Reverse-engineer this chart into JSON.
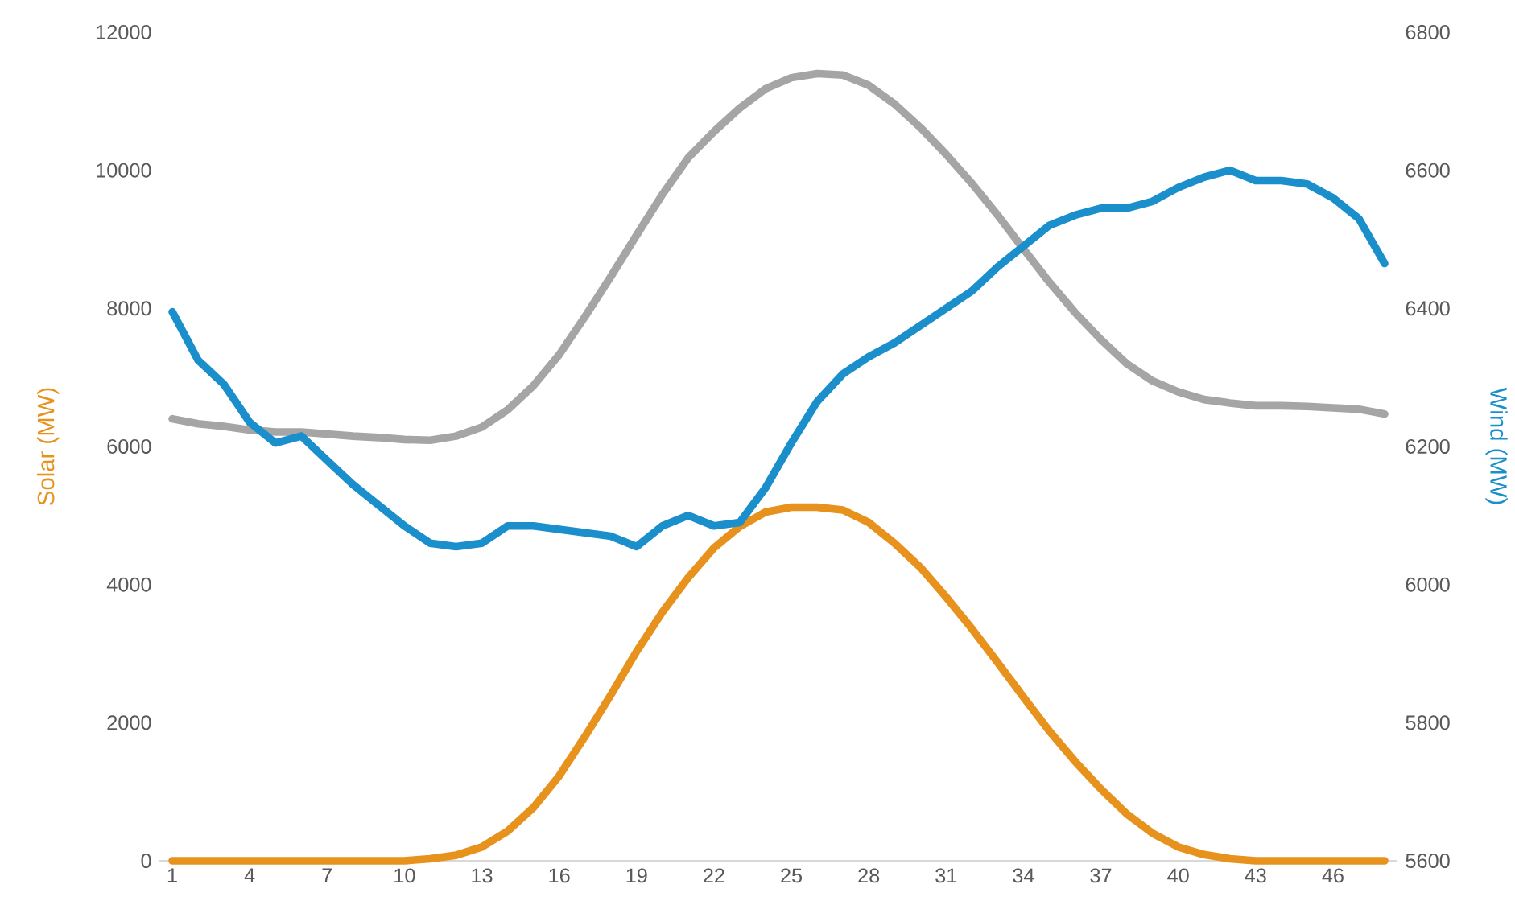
{
  "chart_data": {
    "type": "line",
    "categories": [
      "1",
      null,
      null,
      "4",
      null,
      null,
      "7",
      null,
      null,
      "10",
      null,
      null,
      "13",
      null,
      null,
      "16",
      null,
      null,
      "19",
      null,
      null,
      "22",
      null,
      null,
      "25",
      null,
      null,
      "28",
      null,
      null,
      "31",
      null,
      null,
      "34",
      null,
      null,
      "37",
      null,
      null,
      "40",
      null,
      null,
      "43",
      null,
      null,
      "46",
      null,
      null
    ],
    "series": [
      {
        "color": "#a5a5a5",
        "values": [
          6400,
          6330,
          6290,
          6240,
          6210,
          6210,
          6180,
          6150,
          6130,
          6100,
          6090,
          6150,
          6280,
          6530,
          6880,
          7330,
          7880,
          8460,
          9060,
          9650,
          10180,
          10560,
          10900,
          11180,
          11340,
          11400,
          11380,
          11230,
          10960,
          10620,
          10230,
          9810,
          9350,
          8860,
          8380,
          7940,
          7550,
          7200,
          6950,
          6790,
          6680,
          6630,
          6590,
          6590,
          6580,
          6560,
          6540,
          6470
        ]
      },
      {
        "color": "#e8921e",
        "values": [
          0,
          0,
          0,
          0,
          0,
          0,
          0,
          0,
          0,
          0,
          30,
          80,
          200,
          430,
          770,
          1230,
          1800,
          2400,
          3030,
          3600,
          4100,
          4530,
          4840,
          5050,
          5120,
          5120,
          5080,
          4900,
          4600,
          4250,
          3820,
          3360,
          2870,
          2370,
          1880,
          1440,
          1040,
          680,
          400,
          200,
          90,
          30,
          0,
          0,
          0,
          0,
          0,
          0
        ]
      },
      {
        "color": "#1a8fcb",
        "axis": "y2",
        "values": [
          6395,
          6325,
          6290,
          6235,
          6205,
          6215,
          6180,
          6145,
          6115,
          6085,
          6060,
          6055,
          6060,
          6085,
          6085,
          6080,
          6075,
          6070,
          6055,
          6085,
          6100,
          6085,
          6090,
          6140,
          6205,
          6265,
          6305,
          6330,
          6350,
          6375,
          6400,
          6425,
          6460,
          6490,
          6520,
          6535,
          6545,
          6545,
          6555,
          6575,
          6590,
          6600,
          6585,
          6585,
          6580,
          6560,
          6530,
          6465
        ]
      }
    ],
    "ylabel": "Solar (MW)",
    "y2label": "Wind (MW)",
    "ylim": [
      0,
      12000
    ],
    "yticks": [
      0,
      2000,
      4000,
      6000,
      8000,
      10000,
      12000
    ],
    "y2lim": [
      5600,
      6800
    ],
    "y2ticks": [
      5600,
      5800,
      6000,
      6200,
      6400,
      6600,
      6800
    ],
    "grid": false,
    "marker": "none",
    "line_style": "solid"
  }
}
